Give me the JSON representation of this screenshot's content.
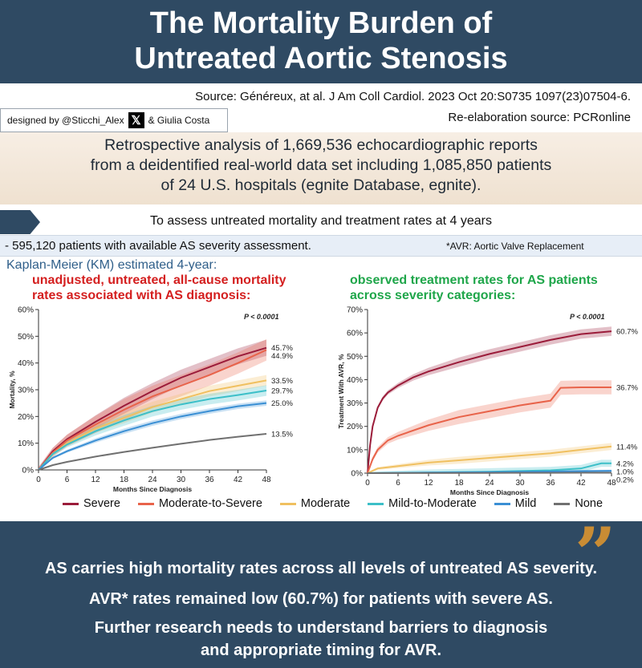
{
  "header": {
    "title_line1": "The Mortality Burden of",
    "title_line2": "Untreated Aortic Stenosis"
  },
  "source": "Source: Généreux, at al.  J Am Coll Cardiol. 2023 Oct 20:S0735 1097(23)07504-6.",
  "credit": {
    "prefix": "designed by @Sticchi_Alex",
    "x_glyph": "𝕏",
    "suffix": "& Giulia Costa"
  },
  "reelaboration": "Re-elaboration source: PCRonline",
  "retrospective": {
    "line1": "Retrospective analysis of 1,669,536 echocardiographic reports",
    "line2": "from a deidentified real-world data set including 1,085,850 patients",
    "line3": "of 24 U.S. hospitals (egnite Database, egnite)."
  },
  "objective": "To assess untreated mortality and treatment rates at 4 years",
  "patients": "- 595,120  patients  with available  AS severity assessment.",
  "avr_note": "*AVR:  Aortic Valve Replacement",
  "km_label": "Kaplan-Meier (KM) estimated 4-year:",
  "left_heading": {
    "line1": "unadjusted, untreated, all-cause mortality",
    "line2": "rates associated with AS diagnosis:"
  },
  "right_heading": {
    "line1": "observed  treatment  rates  for  AS  patients",
    "line2": "across severity categories:"
  },
  "legend": [
    {
      "label": "Severe",
      "color": "#9b1c3a"
    },
    {
      "label": "Moderate-to-Severe",
      "color": "#e8634a"
    },
    {
      "label": "Moderate",
      "color": "#f0c060"
    },
    {
      "label": "Mild-to-Moderate",
      "color": "#3cbfc8"
    },
    {
      "label": "Mild",
      "color": "#3a8fd4"
    },
    {
      "label": "None",
      "color": "#707070"
    }
  ],
  "conclusion": {
    "quote_glyph": "”",
    "line1": "AS carries high mortality rates across all levels of untreated AS severity.",
    "line2": "AVR* rates remained low (60.7%) for patients with severe AS.",
    "line3": "Further research needs to understand barriers to diagnosis",
    "line4": "and appropriate timing for AVR."
  },
  "colors": {
    "banner": "#2f4a63",
    "red_heading": "#d41f1f",
    "green_heading": "#1fa64a",
    "quote": "#c98c34"
  },
  "chart_data": [
    {
      "type": "line",
      "xlabel": "Months Since Diagnosis",
      "ylabel": "Mortality, %",
      "annotation": "P < 0.0001",
      "xticks": [
        "0",
        "6",
        "12",
        "18",
        "24",
        "30",
        "36",
        "42",
        "48"
      ],
      "yticks": [
        "0%",
        "10%",
        "20%",
        "30%",
        "40%",
        "50%",
        "60%"
      ],
      "xlim": [
        0,
        48
      ],
      "ylim": [
        0,
        60
      ],
      "grid": false,
      "series": [
        {
          "name": "Severe",
          "color": "#9b1c3a",
          "end_label": "45.7%",
          "band": 3,
          "x": [
            0,
            3,
            6,
            12,
            18,
            24,
            30,
            36,
            42,
            48
          ],
          "y": [
            0,
            7,
            11.5,
            18,
            24,
            29.5,
            34.5,
            38.5,
            42.5,
            45.7
          ]
        },
        {
          "name": "Moderate-to-Severe",
          "color": "#e8634a",
          "end_label": "44.9%",
          "band": 4,
          "x": [
            0,
            3,
            6,
            12,
            18,
            24,
            30,
            36,
            42,
            48
          ],
          "y": [
            0,
            6.5,
            11,
            17,
            22.5,
            27.5,
            31.5,
            35.5,
            40,
            44.9
          ]
        },
        {
          "name": "Moderate",
          "color": "#f0c060",
          "end_label": "33.5%",
          "band": 2,
          "x": [
            0,
            3,
            6,
            12,
            18,
            24,
            30,
            36,
            42,
            48
          ],
          "y": [
            0,
            6,
            10,
            15.5,
            19.5,
            23.5,
            26.5,
            29.5,
            31.5,
            33.5
          ]
        },
        {
          "name": "Mild-to-Moderate",
          "color": "#3cbfc8",
          "end_label": "29.7%",
          "band": 2,
          "x": [
            0,
            3,
            6,
            12,
            18,
            24,
            30,
            36,
            42,
            48
          ],
          "y": [
            0,
            6,
            9.5,
            14.5,
            18.5,
            22,
            24.5,
            26.5,
            28,
            29.7
          ]
        },
        {
          "name": "Mild",
          "color": "#3a8fd4",
          "end_label": "25.0%",
          "band": 1,
          "x": [
            0,
            3,
            6,
            12,
            18,
            24,
            30,
            36,
            42,
            48
          ],
          "y": [
            0,
            4.5,
            7,
            11,
            14.5,
            17.5,
            20,
            22,
            23.8,
            25.0
          ]
        },
        {
          "name": "None",
          "color": "#707070",
          "end_label": "13.5%",
          "band": 0,
          "x": [
            0,
            3,
            6,
            12,
            18,
            24,
            30,
            36,
            42,
            48
          ],
          "y": [
            0,
            1.8,
            3,
            5,
            6.7,
            8.3,
            9.8,
            11.2,
            12.4,
            13.5
          ]
        }
      ]
    },
    {
      "type": "line",
      "xlabel": "Months Since Diagnosis",
      "ylabel": "Treatment With AVR, %",
      "annotation": "P < 0.0001",
      "xticks": [
        "0",
        "6",
        "12",
        "18",
        "24",
        "30",
        "36",
        "42",
        "48"
      ],
      "yticks": [
        "0%",
        "10%",
        "20%",
        "30%",
        "40%",
        "50%",
        "60%",
        "70%"
      ],
      "xlim": [
        0,
        48
      ],
      "ylim": [
        0,
        70
      ],
      "grid": false,
      "series": [
        {
          "name": "Severe",
          "color": "#9b1c3a",
          "end_label": "60.7%",
          "band": 2,
          "x": [
            0,
            0.5,
            1,
            2,
            3,
            4,
            6,
            9,
            12,
            18,
            24,
            30,
            36,
            42,
            48
          ],
          "y": [
            0,
            12,
            20,
            28,
            32,
            34.5,
            37.5,
            41,
            43.5,
            47.5,
            51,
            54,
            57,
            59.5,
            60.7
          ]
        },
        {
          "name": "Moderate-to-Severe",
          "color": "#e8634a",
          "end_label": "36.7%",
          "band": 3,
          "x": [
            0,
            1,
            2,
            4,
            6,
            12,
            18,
            24,
            30,
            36,
            38,
            42,
            48
          ],
          "y": [
            0,
            6,
            10,
            14,
            16,
            20.5,
            24,
            26.5,
            29,
            31,
            36.5,
            36.7,
            36.7
          ]
        },
        {
          "name": "Moderate",
          "color": "#f0c060",
          "end_label": "11.4%",
          "band": 1.5,
          "x": [
            0,
            2,
            6,
            12,
            18,
            24,
            30,
            36,
            42,
            48
          ],
          "y": [
            0,
            2,
            3,
            4.5,
            5.5,
            6.5,
            7.5,
            8.5,
            10,
            11.4
          ]
        },
        {
          "name": "Mild-to-Moderate",
          "color": "#3cbfc8",
          "end_label": "4.2%",
          "band": 1.5,
          "x": [
            0,
            12,
            24,
            36,
            42,
            46,
            48
          ],
          "y": [
            0,
            0.3,
            0.6,
            1.2,
            2,
            4.2,
            4.2
          ]
        },
        {
          "name": "Mild",
          "color": "#3a8fd4",
          "end_label": "1.0%",
          "band": 0.5,
          "x": [
            0,
            12,
            24,
            36,
            48
          ],
          "y": [
            0,
            0.2,
            0.4,
            0.7,
            1.0
          ]
        },
        {
          "name": "None",
          "color": "#707070",
          "end_label": "0.2%",
          "band": 0,
          "x": [
            0,
            12,
            24,
            36,
            48
          ],
          "y": [
            0,
            0.05,
            0.1,
            0.15,
            0.2
          ]
        }
      ]
    }
  ]
}
